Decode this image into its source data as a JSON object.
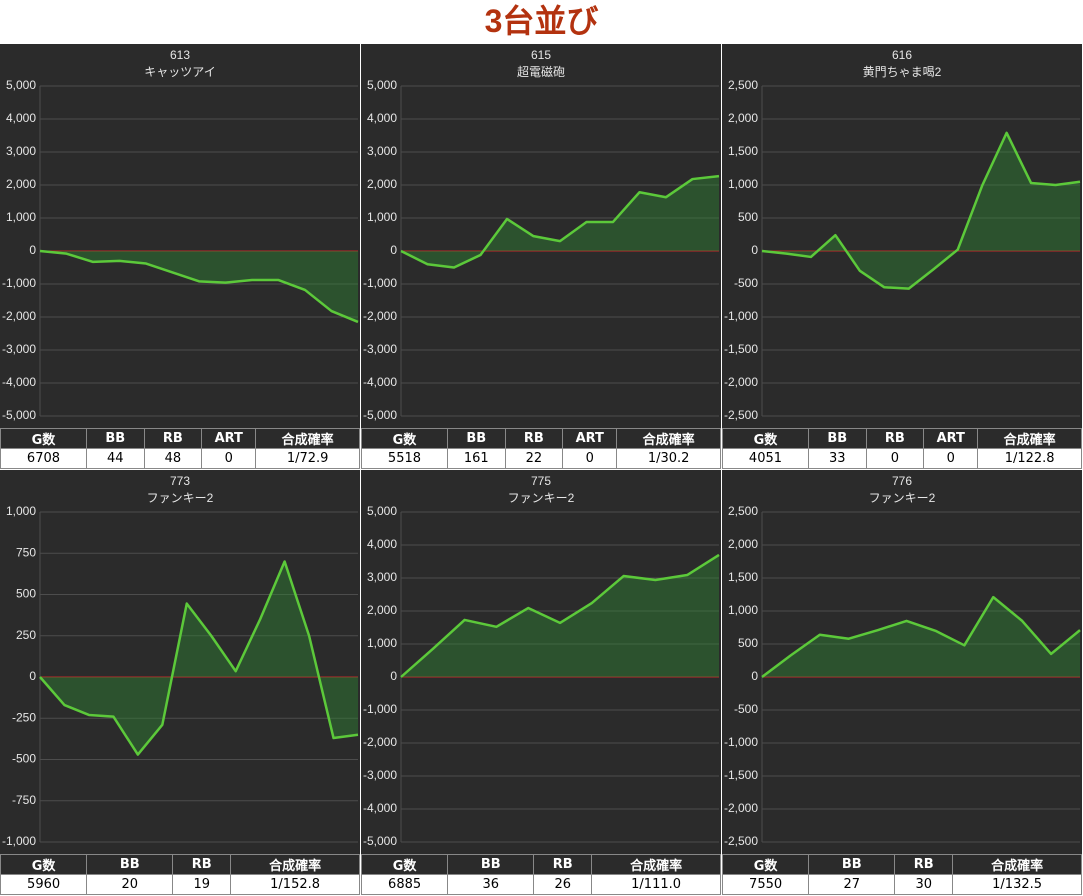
{
  "title": "3台並び",
  "chart_data": [
    {
      "type": "line",
      "title": "613",
      "subtitle": "キャッツアイ",
      "color": "#5cc93a",
      "grid": true,
      "values": [
        0,
        -80,
        -330,
        -300,
        -380,
        -650,
        -920,
        -960,
        -880,
        -880,
        -1180,
        -1820,
        -2150
      ],
      "ylim": [
        -5000,
        5000
      ],
      "yticks": [
        {
          "value": -5000,
          "label": "-5,000"
        },
        {
          "value": -4000,
          "label": "-4,000"
        },
        {
          "value": -3000,
          "label": "-3,000"
        },
        {
          "value": -2000,
          "label": "-2,000"
        },
        {
          "value": -1000,
          "label": "-1,000"
        },
        0,
        {
          "value": 1000,
          "label": "1,000"
        },
        {
          "value": 2000,
          "label": "2,000"
        },
        {
          "value": 3000,
          "label": "3,000"
        },
        {
          "value": 4000,
          "label": "4,000"
        },
        {
          "value": 5000,
          "label": "5,000"
        }
      ]
    },
    {
      "type": "line",
      "title": "615",
      "subtitle": "超電磁砲",
      "color": "#5cc93a",
      "grid": true,
      "values": [
        0,
        -400,
        -500,
        -120,
        970,
        450,
        300,
        880,
        880,
        1780,
        1630,
        2180,
        2270
      ],
      "ylim": [
        -5000,
        5000
      ],
      "yticks": [
        {
          "value": -5000,
          "label": "-5,000"
        },
        {
          "value": -4000,
          "label": "-4,000"
        },
        {
          "value": -3000,
          "label": "-3,000"
        },
        {
          "value": -2000,
          "label": "-2,000"
        },
        {
          "value": -1000,
          "label": "-1,000"
        },
        0,
        {
          "value": 1000,
          "label": "1,000"
        },
        {
          "value": 2000,
          "label": "2,000"
        },
        {
          "value": 3000,
          "label": "3,000"
        },
        {
          "value": 4000,
          "label": "4,000"
        },
        {
          "value": 5000,
          "label": "5,000"
        }
      ]
    },
    {
      "type": "line",
      "title": "616",
      "subtitle": "黄門ちゃま喝2",
      "color": "#5cc93a",
      "grid": true,
      "values": [
        0,
        -40,
        -90,
        240,
        -300,
        -550,
        -570,
        -280,
        20,
        990,
        1790,
        1030,
        1000,
        1050
      ],
      "ylim": [
        -2500,
        2500
      ],
      "yticks": [
        {
          "value": -2500,
          "label": "-2,500"
        },
        {
          "value": -2000,
          "label": "-2,000"
        },
        {
          "value": -1500,
          "label": "-1,500"
        },
        {
          "value": -1000,
          "label": "-1,000"
        },
        -500,
        0,
        500,
        {
          "value": 1000,
          "label": "1,000"
        },
        {
          "value": 1500,
          "label": "1,500"
        },
        {
          "value": 2000,
          "label": "2,000"
        },
        {
          "value": 2500,
          "label": "2,500"
        }
      ]
    },
    {
      "type": "line",
      "title": "773",
      "subtitle": "ファンキー2",
      "color": "#5cc93a",
      "grid": true,
      "values": [
        0,
        -170,
        -230,
        -240,
        -470,
        -290,
        445,
        250,
        35,
        350,
        700,
        250,
        -370,
        -350
      ],
      "ylim": [
        -1000,
        1000
      ],
      "yticks": [
        {
          "value": -1000,
          "label": "-1,000"
        },
        -750,
        -500,
        -250,
        0,
        250,
        500,
        750,
        {
          "value": 1000,
          "label": "1,000"
        }
      ]
    },
    {
      "type": "line",
      "title": "775",
      "subtitle": "ファンキー2",
      "color": "#5cc93a",
      "grid": true,
      "values": [
        0,
        850,
        1730,
        1520,
        2090,
        1640,
        2240,
        3060,
        2940,
        3090,
        3700
      ],
      "ylim": [
        -5000,
        5000
      ],
      "yticks": [
        {
          "value": -5000,
          "label": "-5,000"
        },
        {
          "value": -4000,
          "label": "-4,000"
        },
        {
          "value": -3000,
          "label": "-3,000"
        },
        {
          "value": -2000,
          "label": "-2,000"
        },
        {
          "value": -1000,
          "label": "-1,000"
        },
        0,
        {
          "value": 1000,
          "label": "1,000"
        },
        {
          "value": 2000,
          "label": "2,000"
        },
        {
          "value": 3000,
          "label": "3,000"
        },
        {
          "value": 4000,
          "label": "4,000"
        },
        {
          "value": 5000,
          "label": "5,000"
        }
      ]
    },
    {
      "type": "line",
      "title": "776",
      "subtitle": "ファンキー2",
      "color": "#5cc93a",
      "grid": true,
      "values": [
        0,
        330,
        640,
        580,
        710,
        850,
        700,
        480,
        1210,
        850,
        350,
        710
      ],
      "ylim": [
        -2500,
        2500
      ],
      "yticks": [
        {
          "value": -2500,
          "label": "-2,500"
        },
        {
          "value": -2000,
          "label": "-2,000"
        },
        {
          "value": -1500,
          "label": "-1,500"
        },
        {
          "value": -1000,
          "label": "-1,000"
        },
        -500,
        0,
        500,
        {
          "value": 1000,
          "label": "1,000"
        },
        {
          "value": 1500,
          "label": "1,500"
        },
        {
          "value": 2000,
          "label": "2,000"
        },
        {
          "value": 2500,
          "label": "2,500"
        }
      ]
    }
  ],
  "tables": [
    {
      "header": [
        "G数",
        "BB",
        "RB",
        "ART",
        "合成確率"
      ],
      "row": [
        "6708",
        "44",
        "48",
        "0",
        "1/72.9"
      ]
    },
    {
      "header": [
        "G数",
        "BB",
        "RB",
        "ART",
        "合成確率"
      ],
      "row": [
        "5518",
        "161",
        "22",
        "0",
        "1/30.2"
      ]
    },
    {
      "header": [
        "G数",
        "BB",
        "RB",
        "ART",
        "合成確率"
      ],
      "row": [
        "4051",
        "33",
        "0",
        "0",
        "1/122.8"
      ]
    },
    {
      "header": [
        "G数",
        "BB",
        "RB",
        "合成確率"
      ],
      "row": [
        "5960",
        "20",
        "19",
        "1/152.8"
      ]
    },
    {
      "header": [
        "G数",
        "BB",
        "RB",
        "合成確率"
      ],
      "row": [
        "6885",
        "36",
        "26",
        "1/111.0"
      ]
    },
    {
      "header": [
        "G数",
        "BB",
        "RB",
        "合成確率"
      ],
      "row": [
        "7550",
        "27",
        "30",
        "1/132.5"
      ]
    }
  ]
}
